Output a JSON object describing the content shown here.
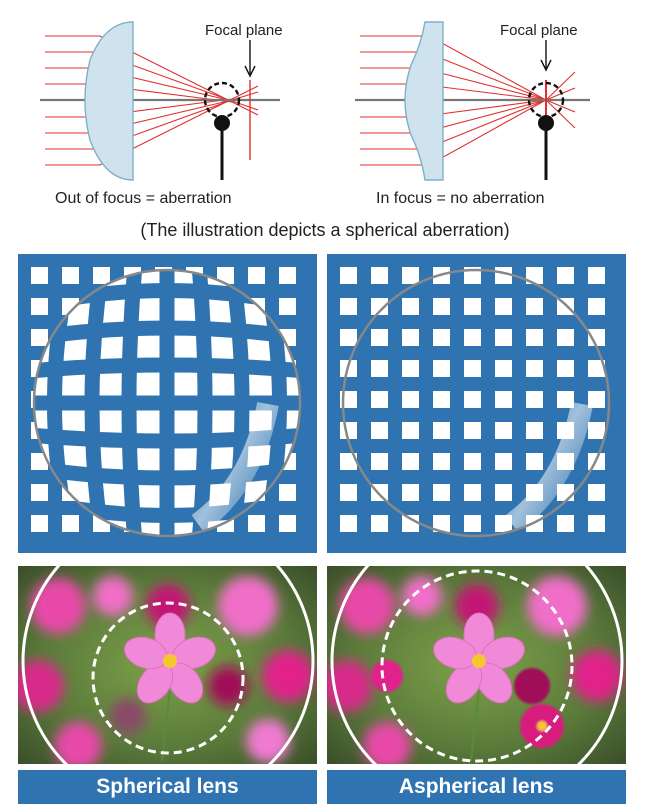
{
  "diagrams": {
    "left": {
      "focal_label": "Focal plane",
      "caption": "Out of focus = aberration"
    },
    "right": {
      "focal_label": "Focal plane",
      "caption": "In focus = no aberration"
    },
    "note": "(The illustration depicts a spherical aberration)"
  },
  "colors": {
    "grid_blue": "#2f74b0",
    "ray_red": "#e0302e",
    "lens_fill": "#cfe3ee",
    "lens_edge": "#7fb0c8",
    "flower_pink": "#f06ec8",
    "flower_magenta": "#e0208a"
  },
  "labels": {
    "spherical": "Spherical lens",
    "aspherical": "Aspherical lens"
  }
}
